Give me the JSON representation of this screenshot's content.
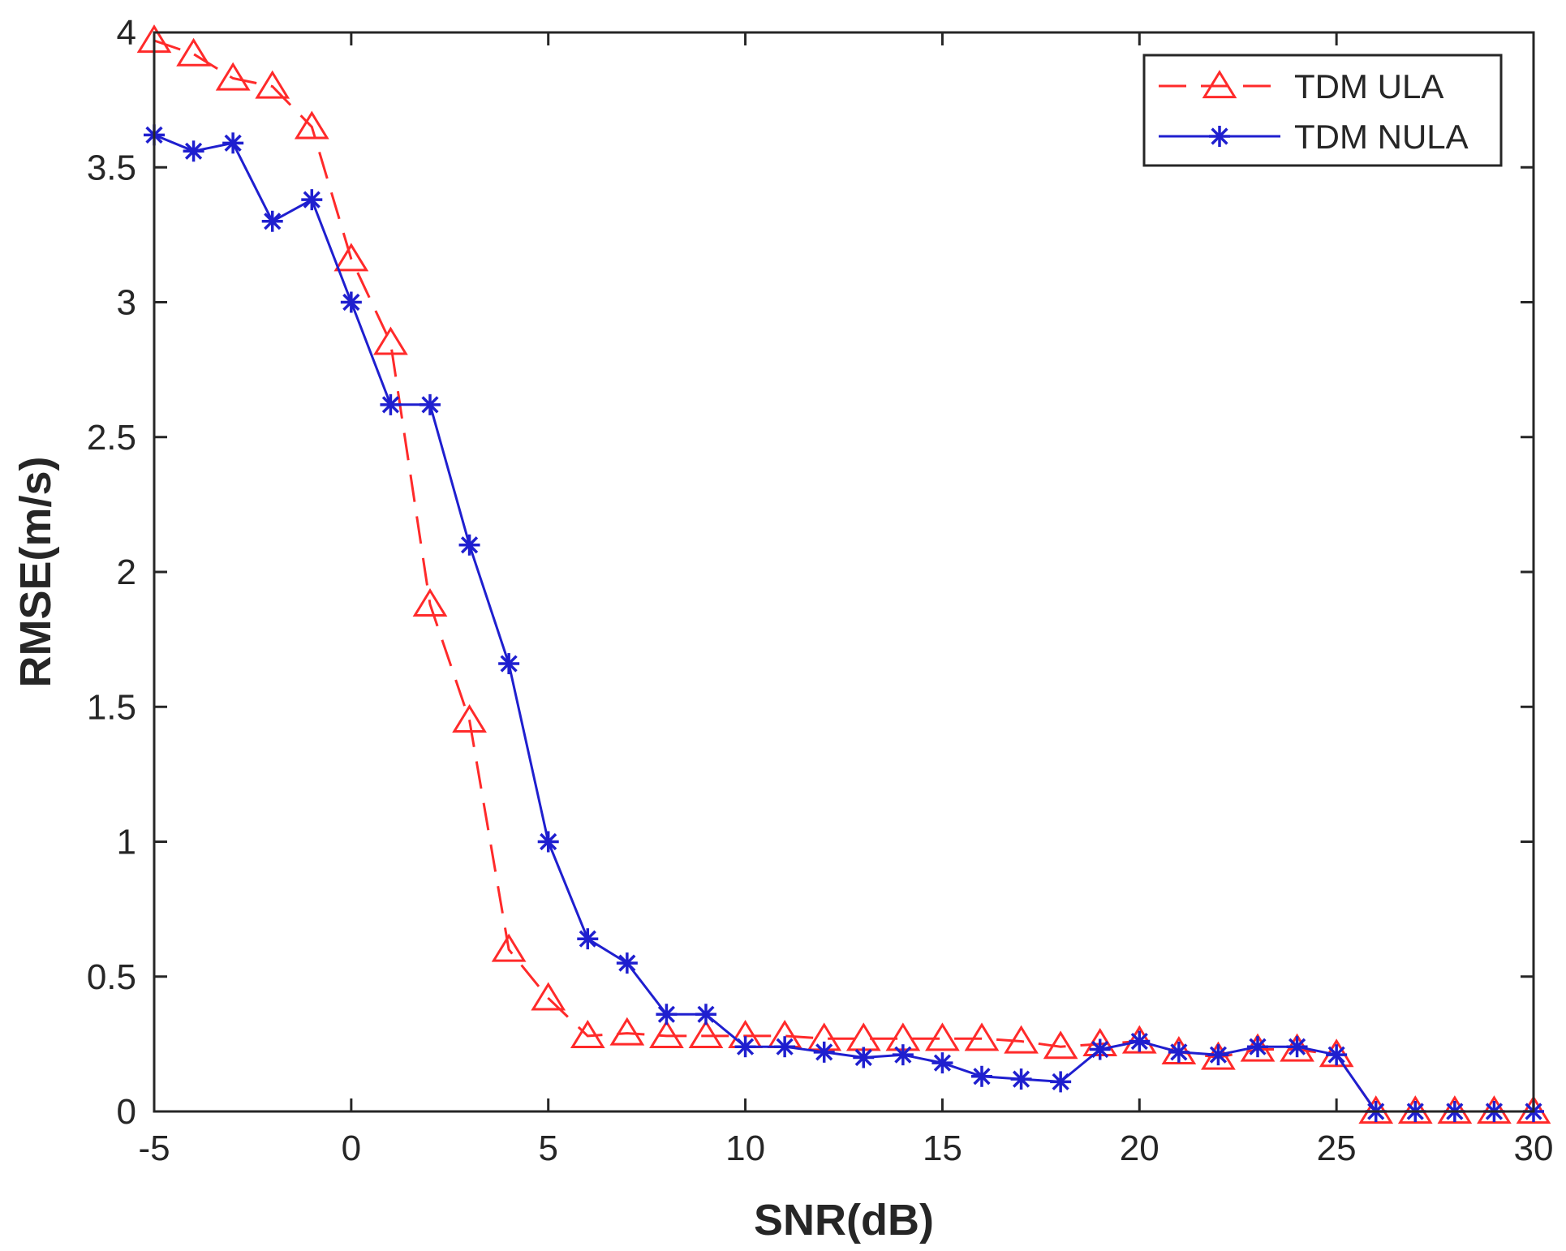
{
  "chart_data": {
    "type": "line",
    "title": "",
    "xlabel": "SNR(dB)",
    "ylabel": "RMSE(m/s)",
    "xlim": [
      -5,
      30
    ],
    "ylim": [
      0,
      4
    ],
    "xticks": [
      -5,
      0,
      5,
      10,
      15,
      20,
      25,
      30
    ],
    "yticks": [
      0,
      0.5,
      1,
      1.5,
      2,
      2.5,
      3,
      3.5,
      4
    ],
    "xtick_labels": [
      "-5",
      "0",
      "5",
      "10",
      "15",
      "20",
      "25",
      "30"
    ],
    "ytick_labels": [
      "0",
      "0.5",
      "1",
      "1.5",
      "2",
      "2.5",
      "3",
      "3.5",
      "4"
    ],
    "grid": false,
    "legend_position": "top-right",
    "x": [
      -5,
      -4,
      -3,
      -2,
      -1,
      0,
      1,
      2,
      3,
      4,
      5,
      6,
      7,
      8,
      9,
      10,
      11,
      12,
      13,
      14,
      15,
      16,
      17,
      18,
      19,
      20,
      21,
      22,
      23,
      24,
      25,
      26,
      27,
      28,
      29,
      30
    ],
    "series": [
      {
        "name": "TDM ULA",
        "color": "#ff2a2a",
        "line_style": "dashed",
        "marker": "triangle",
        "values": [
          3.97,
          3.92,
          3.83,
          3.8,
          3.65,
          3.16,
          2.85,
          1.88,
          1.45,
          0.6,
          0.42,
          0.28,
          0.29,
          0.28,
          0.28,
          0.28,
          0.28,
          0.27,
          0.27,
          0.27,
          0.27,
          0.27,
          0.26,
          0.24,
          0.25,
          0.26,
          0.22,
          0.2,
          0.23,
          0.23,
          0.21,
          0.0,
          0.0,
          0.0,
          0.0,
          0.0
        ]
      },
      {
        "name": "TDM NULA",
        "color": "#1f1fcf",
        "line_style": "solid",
        "marker": "star",
        "values": [
          3.62,
          3.56,
          3.59,
          3.3,
          3.38,
          3.0,
          2.62,
          2.62,
          2.1,
          1.66,
          1.0,
          0.64,
          0.55,
          0.36,
          0.36,
          0.24,
          0.24,
          0.22,
          0.2,
          0.21,
          0.18,
          0.13,
          0.12,
          0.11,
          0.23,
          0.26,
          0.22,
          0.21,
          0.24,
          0.24,
          0.21,
          0.0,
          0.0,
          0.0,
          0.0,
          0.0
        ]
      }
    ]
  }
}
